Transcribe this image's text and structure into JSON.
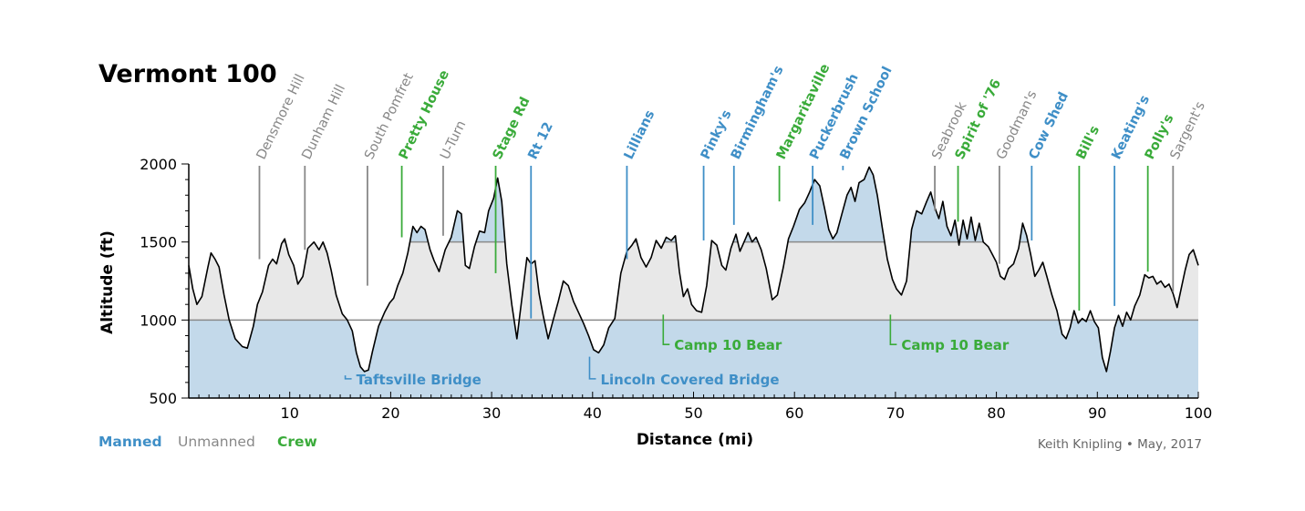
{
  "title": "Vermont 100",
  "credit": "Keith Knipling • May, 2017",
  "colors": {
    "manned": "#3f8fc7",
    "unmanned": "#888888",
    "crew": "#3aab3a",
    "fill_blue": "#c3d9ea",
    "fill_gray": "#e8e8e8",
    "line": "#000000"
  },
  "legend": [
    {
      "label": "Manned",
      "type": "manned"
    },
    {
      "label": "Unmanned",
      "type": "unmanned"
    },
    {
      "label": "Crew",
      "type": "crew"
    }
  ],
  "chart_data": {
    "type": "area",
    "xlabel": "Distance (mi)",
    "ylabel": "Altitude (ft)",
    "xlim": [
      0,
      100
    ],
    "ylim": [
      500,
      2000
    ],
    "x_ticks": [
      10,
      20,
      30,
      40,
      50,
      60,
      70,
      80,
      90,
      100
    ],
    "y_ticks": [
      500,
      1000,
      1500,
      2000
    ],
    "reference_lines": [
      1000,
      1500
    ],
    "profile": [
      [
        0,
        1350
      ],
      [
        0.4,
        1200
      ],
      [
        0.8,
        1100
      ],
      [
        1.3,
        1150
      ],
      [
        1.9,
        1340
      ],
      [
        2.2,
        1430
      ],
      [
        2.6,
        1390
      ],
      [
        3.0,
        1340
      ],
      [
        3.5,
        1160
      ],
      [
        4.0,
        1000
      ],
      [
        4.6,
        880
      ],
      [
        5.3,
        830
      ],
      [
        5.8,
        820
      ],
      [
        6.4,
        960
      ],
      [
        6.8,
        1100
      ],
      [
        7.3,
        1180
      ],
      [
        7.9,
        1350
      ],
      [
        8.3,
        1390
      ],
      [
        8.7,
        1360
      ],
      [
        9.2,
        1490
      ],
      [
        9.5,
        1520
      ],
      [
        9.9,
        1420
      ],
      [
        10.4,
        1350
      ],
      [
        10.8,
        1230
      ],
      [
        11.3,
        1280
      ],
      [
        11.8,
        1460
      ],
      [
        12.4,
        1500
      ],
      [
        12.9,
        1450
      ],
      [
        13.3,
        1500
      ],
      [
        13.7,
        1430
      ],
      [
        14.1,
        1320
      ],
      [
        14.6,
        1160
      ],
      [
        15.2,
        1040
      ],
      [
        15.7,
        1000
      ],
      [
        16.2,
        930
      ],
      [
        16.6,
        790
      ],
      [
        17.0,
        700
      ],
      [
        17.4,
        670
      ],
      [
        17.8,
        680
      ],
      [
        18.2,
        800
      ],
      [
        18.8,
        960
      ],
      [
        19.4,
        1050
      ],
      [
        19.9,
        1110
      ],
      [
        20.3,
        1140
      ],
      [
        20.7,
        1220
      ],
      [
        21.2,
        1300
      ],
      [
        21.7,
        1430
      ],
      [
        22.2,
        1600
      ],
      [
        22.6,
        1560
      ],
      [
        23.0,
        1600
      ],
      [
        23.4,
        1580
      ],
      [
        23.9,
        1450
      ],
      [
        24.3,
        1380
      ],
      [
        24.8,
        1310
      ],
      [
        25.4,
        1450
      ],
      [
        26.0,
        1530
      ],
      [
        26.6,
        1700
      ],
      [
        27.0,
        1680
      ],
      [
        27.4,
        1350
      ],
      [
        27.8,
        1330
      ],
      [
        28.3,
        1470
      ],
      [
        28.8,
        1570
      ],
      [
        29.3,
        1560
      ],
      [
        29.7,
        1700
      ],
      [
        30.2,
        1780
      ],
      [
        30.6,
        1910
      ],
      [
        31.0,
        1760
      ],
      [
        31.5,
        1360
      ],
      [
        32.0,
        1100
      ],
      [
        32.5,
        880
      ],
      [
        33.0,
        1140
      ],
      [
        33.5,
        1400
      ],
      [
        33.9,
        1360
      ],
      [
        34.3,
        1380
      ],
      [
        34.7,
        1170
      ],
      [
        35.1,
        1030
      ],
      [
        35.6,
        880
      ],
      [
        36.1,
        1000
      ],
      [
        36.6,
        1120
      ],
      [
        37.1,
        1250
      ],
      [
        37.6,
        1220
      ],
      [
        38.1,
        1120
      ],
      [
        38.6,
        1050
      ],
      [
        39.1,
        980
      ],
      [
        39.6,
        900
      ],
      [
        40.1,
        810
      ],
      [
        40.6,
        790
      ],
      [
        41.1,
        840
      ],
      [
        41.6,
        950
      ],
      [
        42.2,
        1010
      ],
      [
        42.8,
        1300
      ],
      [
        43.4,
        1440
      ],
      [
        43.9,
        1480
      ],
      [
        44.3,
        1520
      ],
      [
        44.8,
        1400
      ],
      [
        45.3,
        1340
      ],
      [
        45.8,
        1400
      ],
      [
        46.3,
        1510
      ],
      [
        46.8,
        1460
      ],
      [
        47.3,
        1530
      ],
      [
        47.8,
        1510
      ],
      [
        48.2,
        1540
      ],
      [
        48.6,
        1310
      ],
      [
        49.0,
        1150
      ],
      [
        49.4,
        1200
      ],
      [
        49.8,
        1100
      ],
      [
        50.3,
        1060
      ],
      [
        50.8,
        1050
      ],
      [
        51.3,
        1220
      ],
      [
        51.8,
        1510
      ],
      [
        52.3,
        1480
      ],
      [
        52.8,
        1350
      ],
      [
        53.2,
        1320
      ],
      [
        53.7,
        1460
      ],
      [
        54.2,
        1550
      ],
      [
        54.6,
        1440
      ],
      [
        55.0,
        1500
      ],
      [
        55.4,
        1560
      ],
      [
        55.8,
        1500
      ],
      [
        56.2,
        1530
      ],
      [
        56.7,
        1450
      ],
      [
        57.2,
        1330
      ],
      [
        57.8,
        1130
      ],
      [
        58.3,
        1160
      ],
      [
        58.9,
        1340
      ],
      [
        59.4,
        1520
      ],
      [
        59.9,
        1600
      ],
      [
        60.5,
        1710
      ],
      [
        61.0,
        1750
      ],
      [
        61.5,
        1820
      ],
      [
        62.0,
        1900
      ],
      [
        62.5,
        1860
      ],
      [
        63.0,
        1710
      ],
      [
        63.4,
        1580
      ],
      [
        63.8,
        1520
      ],
      [
        64.2,
        1560
      ],
      [
        64.7,
        1680
      ],
      [
        65.2,
        1800
      ],
      [
        65.6,
        1850
      ],
      [
        66.0,
        1760
      ],
      [
        66.4,
        1880
      ],
      [
        66.9,
        1900
      ],
      [
        67.4,
        1980
      ],
      [
        67.8,
        1930
      ],
      [
        68.2,
        1800
      ],
      [
        68.7,
        1590
      ],
      [
        69.2,
        1390
      ],
      [
        69.7,
        1260
      ],
      [
        70.1,
        1200
      ],
      [
        70.6,
        1160
      ],
      [
        71.1,
        1250
      ],
      [
        71.6,
        1580
      ],
      [
        72.1,
        1700
      ],
      [
        72.6,
        1680
      ],
      [
        73.1,
        1760
      ],
      [
        73.5,
        1820
      ],
      [
        73.9,
        1720
      ],
      [
        74.3,
        1650
      ],
      [
        74.7,
        1760
      ],
      [
        75.1,
        1600
      ],
      [
        75.5,
        1540
      ],
      [
        75.9,
        1640
      ],
      [
        76.3,
        1480
      ],
      [
        76.7,
        1640
      ],
      [
        77.1,
        1520
      ],
      [
        77.5,
        1660
      ],
      [
        77.9,
        1510
      ],
      [
        78.3,
        1620
      ],
      [
        78.7,
        1500
      ],
      [
        79.2,
        1470
      ],
      [
        79.6,
        1420
      ],
      [
        80.0,
        1370
      ],
      [
        80.4,
        1280
      ],
      [
        80.8,
        1260
      ],
      [
        81.2,
        1330
      ],
      [
        81.7,
        1360
      ],
      [
        82.2,
        1460
      ],
      [
        82.6,
        1620
      ],
      [
        83.0,
        1540
      ],
      [
        83.4,
        1420
      ],
      [
        83.8,
        1280
      ],
      [
        84.2,
        1320
      ],
      [
        84.6,
        1370
      ],
      [
        85.0,
        1280
      ],
      [
        85.5,
        1160
      ],
      [
        86.0,
        1060
      ],
      [
        86.5,
        910
      ],
      [
        86.9,
        880
      ],
      [
        87.3,
        950
      ],
      [
        87.7,
        1060
      ],
      [
        88.1,
        980
      ],
      [
        88.5,
        1010
      ],
      [
        88.9,
        990
      ],
      [
        89.3,
        1060
      ],
      [
        89.7,
        990
      ],
      [
        90.1,
        950
      ],
      [
        90.5,
        760
      ],
      [
        90.9,
        670
      ],
      [
        91.3,
        800
      ],
      [
        91.7,
        950
      ],
      [
        92.1,
        1030
      ],
      [
        92.5,
        960
      ],
      [
        92.9,
        1050
      ],
      [
        93.3,
        1000
      ],
      [
        93.7,
        1090
      ],
      [
        94.2,
        1160
      ],
      [
        94.7,
        1290
      ],
      [
        95.1,
        1270
      ],
      [
        95.5,
        1280
      ],
      [
        95.9,
        1230
      ],
      [
        96.3,
        1250
      ],
      [
        96.7,
        1210
      ],
      [
        97.1,
        1230
      ],
      [
        97.5,
        1170
      ],
      [
        97.9,
        1080
      ],
      [
        98.3,
        1200
      ],
      [
        98.7,
        1320
      ],
      [
        99.1,
        1420
      ],
      [
        99.5,
        1450
      ],
      [
        100.0,
        1350
      ]
    ],
    "stations": [
      {
        "name": "Densmore Hill",
        "mile": 7.0,
        "type": "unmanned",
        "line_top_alt": 1390
      },
      {
        "name": "Dunham Hill",
        "mile": 11.5,
        "type": "unmanned",
        "line_top_alt": 1450
      },
      {
        "name": "South Pomfret",
        "mile": 17.7,
        "type": "unmanned",
        "line_top_alt": 1220
      },
      {
        "name": "Pretty House",
        "mile": 21.1,
        "type": "crew",
        "line_top_alt": 1530
      },
      {
        "name": "U-Turn",
        "mile": 25.2,
        "type": "unmanned",
        "line_top_alt": 1540
      },
      {
        "name": "Stage Rd",
        "mile": 30.4,
        "type": "crew",
        "line_top_alt": 1300
      },
      {
        "name": "Rt 12",
        "mile": 33.9,
        "type": "manned",
        "line_top_alt": 1010
      },
      {
        "name": "Lillians",
        "mile": 43.4,
        "type": "manned",
        "line_top_alt": 1390
      },
      {
        "name": "Pinky's",
        "mile": 51.0,
        "type": "manned",
        "line_top_alt": 1510
      },
      {
        "name": "Birmingham's",
        "mile": 54.0,
        "type": "manned",
        "line_top_alt": 1610
      },
      {
        "name": "Margaritaville",
        "mile": 58.5,
        "type": "crew",
        "line_top_alt": 1760
      },
      {
        "name": "Puckerbrush",
        "mile": 61.8,
        "type": "manned",
        "line_top_alt": 1610
      },
      {
        "name": "Brown School",
        "mile": 64.8,
        "type": "manned",
        "line_top_alt": 1960
      },
      {
        "name": "Seabrook",
        "mile": 73.9,
        "type": "unmanned",
        "line_top_alt": 1700
      },
      {
        "name": "Spirit of '76",
        "mile": 76.2,
        "type": "crew",
        "line_top_alt": 1630
      },
      {
        "name": "Goodman's",
        "mile": 80.3,
        "type": "unmanned",
        "line_top_alt": 1360
      },
      {
        "name": "Cow Shed",
        "mile": 83.5,
        "type": "manned",
        "line_top_alt": 1510
      },
      {
        "name": "Bill's",
        "mile": 88.2,
        "type": "crew",
        "line_top_alt": 1060
      },
      {
        "name": "Keating's",
        "mile": 91.7,
        "type": "manned",
        "line_top_alt": 1090
      },
      {
        "name": "Polly's",
        "mile": 95.0,
        "type": "crew",
        "line_top_alt": 1310
      },
      {
        "name": "Sargent's",
        "mile": 97.5,
        "type": "unmanned",
        "line_top_alt": 1180
      }
    ],
    "bottom_annotations": [
      {
        "name": "Taftsville Bridge",
        "mile": 15.5,
        "type": "manned",
        "alt": 680,
        "label_alt": 600
      },
      {
        "name": "Camp 10 Bear",
        "mile": 47.0,
        "type": "crew",
        "alt": 1070,
        "label_alt": 820
      },
      {
        "name": "Lincoln Covered Bridge",
        "mile": 39.7,
        "type": "manned",
        "alt": 800,
        "label_alt": 600
      },
      {
        "name": "Camp 10 Bear",
        "mile": 69.5,
        "type": "crew",
        "alt": 1070,
        "label_alt": 820
      }
    ]
  }
}
